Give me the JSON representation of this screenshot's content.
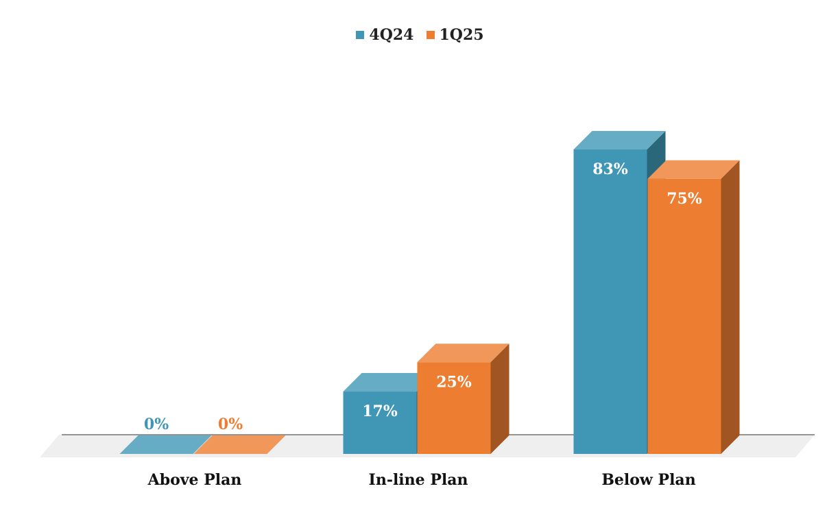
{
  "chart_data": {
    "type": "bar",
    "title": "",
    "xlabel": "",
    "ylabel": "",
    "categories": [
      "Above Plan",
      "In-line Plan",
      "Below Plan"
    ],
    "series": [
      {
        "name": "4Q24",
        "values": [
          0,
          17,
          83
        ],
        "labels": [
          "0%",
          "17%",
          "83%"
        ],
        "color": "#3f97b5"
      },
      {
        "name": "1Q25",
        "values": [
          0,
          25,
          75
        ],
        "labels": [
          "0%",
          "25%",
          "75%"
        ],
        "color": "#ed7d31"
      }
    ],
    "unit": "%",
    "ylim": [
      0,
      100
    ],
    "grid": false,
    "legend": "top-center",
    "style": "3d-column"
  }
}
